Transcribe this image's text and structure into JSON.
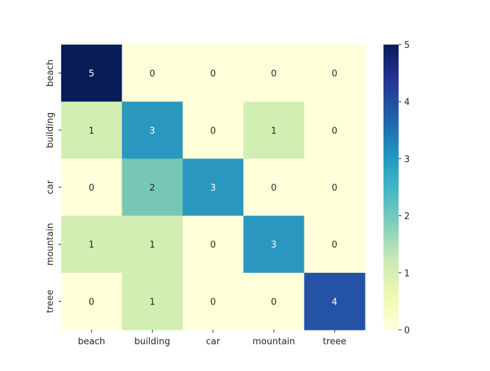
{
  "chart_data": {
    "type": "heatmap",
    "title": "",
    "xlabel": "",
    "ylabel": "",
    "x_categories": [
      "beach",
      "building",
      "car",
      "mountain",
      "treee"
    ],
    "y_categories": [
      "beach",
      "building",
      "car",
      "mountain",
      "treee"
    ],
    "values": [
      [
        5,
        0,
        0,
        0,
        0
      ],
      [
        1,
        3,
        0,
        1,
        0
      ],
      [
        0,
        2,
        3,
        0,
        0
      ],
      [
        1,
        1,
        0,
        3,
        0
      ],
      [
        0,
        1,
        0,
        0,
        4
      ]
    ],
    "annotated": true,
    "colormap": "YlGnBu",
    "value_range": [
      0,
      5
    ],
    "colorbar": {
      "ticks": [
        "0",
        "1",
        "2",
        "3",
        "4",
        "5"
      ],
      "placement": "right"
    },
    "colors": {
      "0": "#ffffd9",
      "1": "#d3eeb3",
      "2": "#76c8b5",
      "3": "#2a97c1",
      "4": "#2452a4",
      "5": "#081d58"
    },
    "grid": false
  }
}
